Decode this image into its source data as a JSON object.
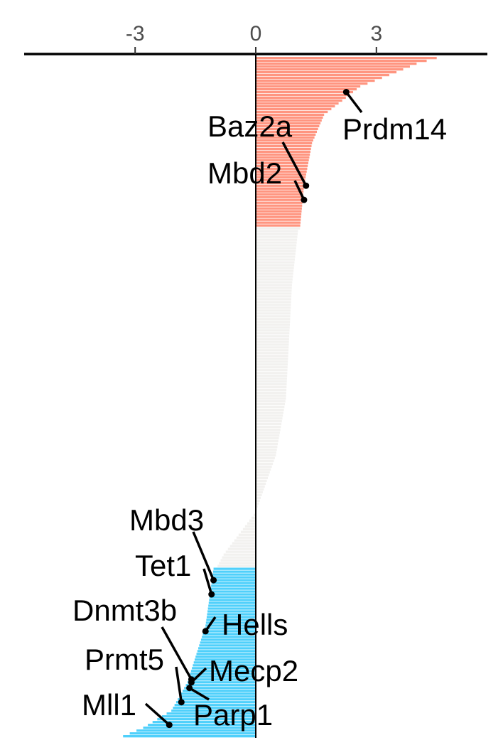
{
  "chart_data": {
    "type": "bar",
    "orientation": "horizontal",
    "axis": {
      "position": "top",
      "xlim": [
        -5.7,
        5.7
      ],
      "ticks": [
        -3,
        0,
        3
      ],
      "tick_labels": [
        "-3",
        "0",
        "3"
      ]
    },
    "colors": {
      "up": "#ff9580",
      "neutral": "#f2f1ef",
      "down": "#4fd0fb",
      "axis": "#000000",
      "tick_text": "#4d4d4d"
    },
    "n_genes": 240,
    "up_count": 60,
    "down_count": 60,
    "profile": {
      "rank": [
        0,
        2,
        5,
        10,
        20,
        30,
        45,
        60,
        61,
        80,
        120,
        140,
        160,
        175,
        179,
        180,
        200,
        220,
        230,
        236,
        239
      ],
      "value": [
        4.5,
        4.0,
        3.5,
        2.6,
        1.7,
        1.4,
        1.2,
        1.1,
        1.05,
        0.9,
        0.75,
        0.5,
        0.0,
        -0.8,
        -0.95,
        -1.05,
        -1.25,
        -1.7,
        -2.1,
        -2.8,
        -3.3
      ]
    },
    "highlighted_genes": [
      {
        "name": "Prdm14",
        "value": 2.25,
        "rank": 12
      },
      {
        "name": "Baz2a",
        "value": 1.25,
        "rank": 45
      },
      {
        "name": "Mbd2",
        "value": 1.2,
        "rank": 50
      },
      {
        "name": "Mbd3",
        "value": -1.05,
        "rank": 184
      },
      {
        "name": "Tet1",
        "value": -1.1,
        "rank": 189
      },
      {
        "name": "Hells",
        "value": -1.25,
        "rank": 202
      },
      {
        "name": "Dnmt3b",
        "value": -1.6,
        "rank": 219
      },
      {
        "name": "Mecp2",
        "value": -1.6,
        "rank": 220
      },
      {
        "name": "Parp1",
        "value": -1.65,
        "rank": 222
      },
      {
        "name": "Prmt5",
        "value": -1.85,
        "rank": 227
      },
      {
        "name": "Mll1",
        "value": -2.15,
        "rank": 235
      }
    ]
  }
}
